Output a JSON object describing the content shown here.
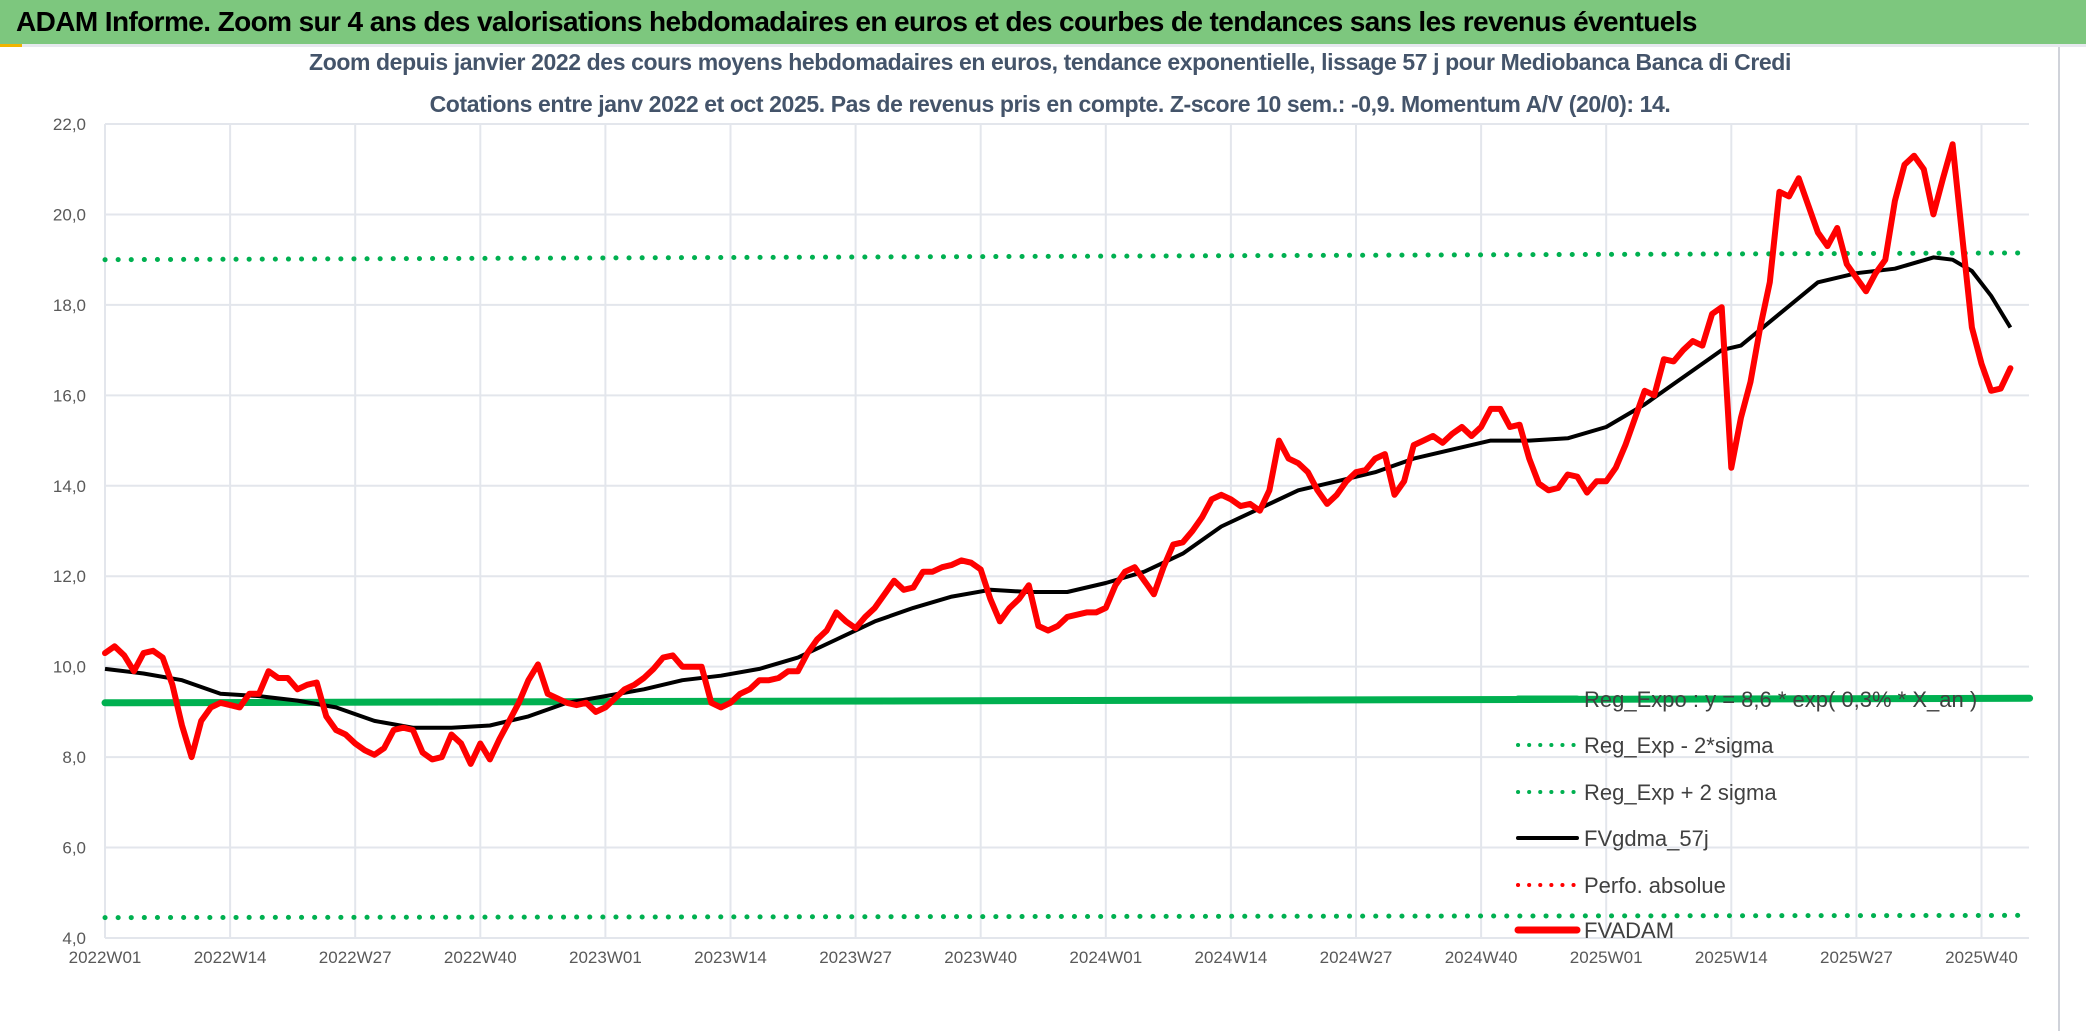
{
  "header": {
    "title": "ADAM Informe. Zoom sur 4 ans des valorisations hebdomadaires en euros et des courbes de tendances sans les revenus éventuels"
  },
  "chart_data": {
    "type": "line",
    "title": "Zoom depuis janvier 2022 des cours moyens hebdomadaires en euros, tendance exponentielle, lissage 57 j pour Mediobanca Banca di Credi",
    "subtitle": "Cotations entre janv 2022 et oct 2025. Pas de revenus pris en compte. Z-score 10 sem.: -0,9. Momentum A/V (20/0): 14.",
    "xlabel": "",
    "ylabel": "",
    "ylim": [
      4,
      22
    ],
    "yticks": [
      "4,0",
      "6,0",
      "8,0",
      "10,0",
      "12,0",
      "14,0",
      "16,0",
      "18,0",
      "20,0",
      "22,0"
    ],
    "ytick_values": [
      4,
      6,
      8,
      10,
      12,
      14,
      16,
      18,
      20,
      22
    ],
    "xticks": [
      "2022W01",
      "2022W14",
      "2022W27",
      "2022W40",
      "2023W01",
      "2023W14",
      "2023W27",
      "2023W40",
      "2024W01",
      "2024W14",
      "2024W27",
      "2024W40",
      "2025W01",
      "2025W14",
      "2025W27",
      "2025W40"
    ],
    "xtick_weeks": [
      0,
      13,
      26,
      39,
      52,
      65,
      78,
      91,
      104,
      117,
      130,
      143,
      156,
      169,
      182,
      195
    ],
    "x_unit": "weeks since 2022W01",
    "xlim": [
      0,
      200
    ],
    "grid": true,
    "legend_position": "bottom-right",
    "colors": {
      "reg": "#00b050",
      "fvgdma": "#000000",
      "perfo": "#ff0000",
      "fvadam": "#ff0000"
    },
    "series": [
      {
        "name": "Reg_Expo : y = 8,6 * exp( 0,3% *  X_an )",
        "style": "solid-thick",
        "color": "#00b050",
        "x": [
          0,
          200
        ],
        "values": [
          9.2,
          9.3
        ]
      },
      {
        "name": "Reg_Exp - 2*sigma",
        "style": "dotted",
        "color": "#00b050",
        "x": [
          0,
          200
        ],
        "values": [
          4.45,
          4.5
        ]
      },
      {
        "name": "Reg_Exp + 2 sigma",
        "style": "dotted",
        "color": "#00b050",
        "x": [
          0,
          200
        ],
        "values": [
          19.0,
          19.15
        ]
      },
      {
        "name": "FVgdma_57j",
        "style": "solid",
        "color": "#000000",
        "x": [
          0,
          4,
          8,
          12,
          16,
          20,
          24,
          28,
          32,
          36,
          40,
          44,
          48,
          52,
          56,
          60,
          64,
          68,
          72,
          76,
          80,
          84,
          88,
          92,
          96,
          100,
          104,
          108,
          112,
          116,
          120,
          124,
          128,
          132,
          136,
          140,
          144,
          148,
          152,
          156,
          160,
          164,
          168,
          170,
          174,
          178,
          182,
          186,
          190,
          192,
          194,
          196,
          198
        ],
        "values": [
          9.95,
          9.85,
          9.7,
          9.4,
          9.35,
          9.25,
          9.1,
          8.8,
          8.65,
          8.65,
          8.7,
          8.9,
          9.2,
          9.35,
          9.5,
          9.7,
          9.8,
          9.95,
          10.2,
          10.6,
          11.0,
          11.3,
          11.55,
          11.7,
          11.65,
          11.65,
          11.85,
          12.1,
          12.5,
          13.1,
          13.5,
          13.9,
          14.1,
          14.3,
          14.6,
          14.8,
          15.0,
          15.0,
          15.05,
          15.3,
          15.8,
          16.4,
          17.0,
          17.1,
          17.8,
          18.5,
          18.7,
          18.8,
          19.05,
          19.0,
          18.75,
          18.2,
          17.5
        ]
      },
      {
        "name": "Perfo. absolue",
        "style": "dotted",
        "color": "#ff0000",
        "x": [],
        "values": []
      },
      {
        "name": "FVADAM",
        "style": "solid-thick",
        "color": "#ff0000",
        "x_start": 0,
        "values": [
          10.3,
          10.45,
          10.25,
          9.9,
          10.3,
          10.35,
          10.2,
          9.6,
          8.7,
          8.0,
          8.8,
          9.1,
          9.2,
          9.15,
          9.1,
          9.4,
          9.4,
          9.9,
          9.75,
          9.75,
          9.5,
          9.6,
          9.65,
          8.9,
          8.6,
          8.5,
          8.3,
          8.15,
          8.05,
          8.2,
          8.6,
          8.65,
          8.6,
          8.1,
          7.95,
          8.0,
          8.5,
          8.3,
          7.85,
          8.3,
          7.95,
          8.4,
          8.8,
          9.2,
          9.7,
          10.05,
          9.4,
          9.3,
          9.2,
          9.15,
          9.2,
          9.0,
          9.1,
          9.3,
          9.5,
          9.6,
          9.75,
          9.95,
          10.2,
          10.25,
          10.0,
          10.0,
          10.0,
          9.2,
          9.1,
          9.2,
          9.4,
          9.5,
          9.7,
          9.7,
          9.75,
          9.9,
          9.9,
          10.3,
          10.6,
          10.8,
          11.2,
          11.0,
          10.85,
          11.1,
          11.3,
          11.6,
          11.9,
          11.7,
          11.75,
          12.1,
          12.1,
          12.2,
          12.25,
          12.35,
          12.3,
          12.15,
          11.5,
          11.0,
          11.3,
          11.5,
          11.8,
          10.9,
          10.8,
          10.9,
          11.1,
          11.15,
          11.2,
          11.2,
          11.3,
          11.8,
          12.1,
          12.2,
          11.9,
          11.6,
          12.2,
          12.7,
          12.75,
          13.0,
          13.3,
          13.7,
          13.8,
          13.7,
          13.55,
          13.6,
          13.45,
          13.9,
          15.0,
          14.6,
          14.5,
          14.3,
          13.9,
          13.6,
          13.8,
          14.1,
          14.3,
          14.35,
          14.6,
          14.7,
          13.8,
          14.1,
          14.9,
          15.0,
          15.1,
          14.95,
          15.15,
          15.3,
          15.1,
          15.3,
          15.7,
          15.7,
          15.3,
          15.35,
          14.6,
          14.05,
          13.9,
          13.95,
          14.25,
          14.2,
          13.85,
          14.1,
          14.1,
          14.4,
          14.9,
          15.5,
          16.1,
          16.0,
          16.8,
          16.75,
          17.0,
          17.2,
          17.1,
          17.8,
          17.95,
          14.4,
          15.5,
          16.3,
          17.5,
          18.5,
          20.5,
          20.4,
          20.8,
          20.2,
          19.6,
          19.3,
          19.7,
          18.9,
          18.6,
          18.3,
          18.7,
          19.0,
          20.3,
          21.1,
          21.3,
          21.0,
          20.0,
          20.8,
          21.55,
          19.5,
          17.5,
          16.7,
          16.1,
          16.15,
          16.6
        ]
      }
    ]
  }
}
